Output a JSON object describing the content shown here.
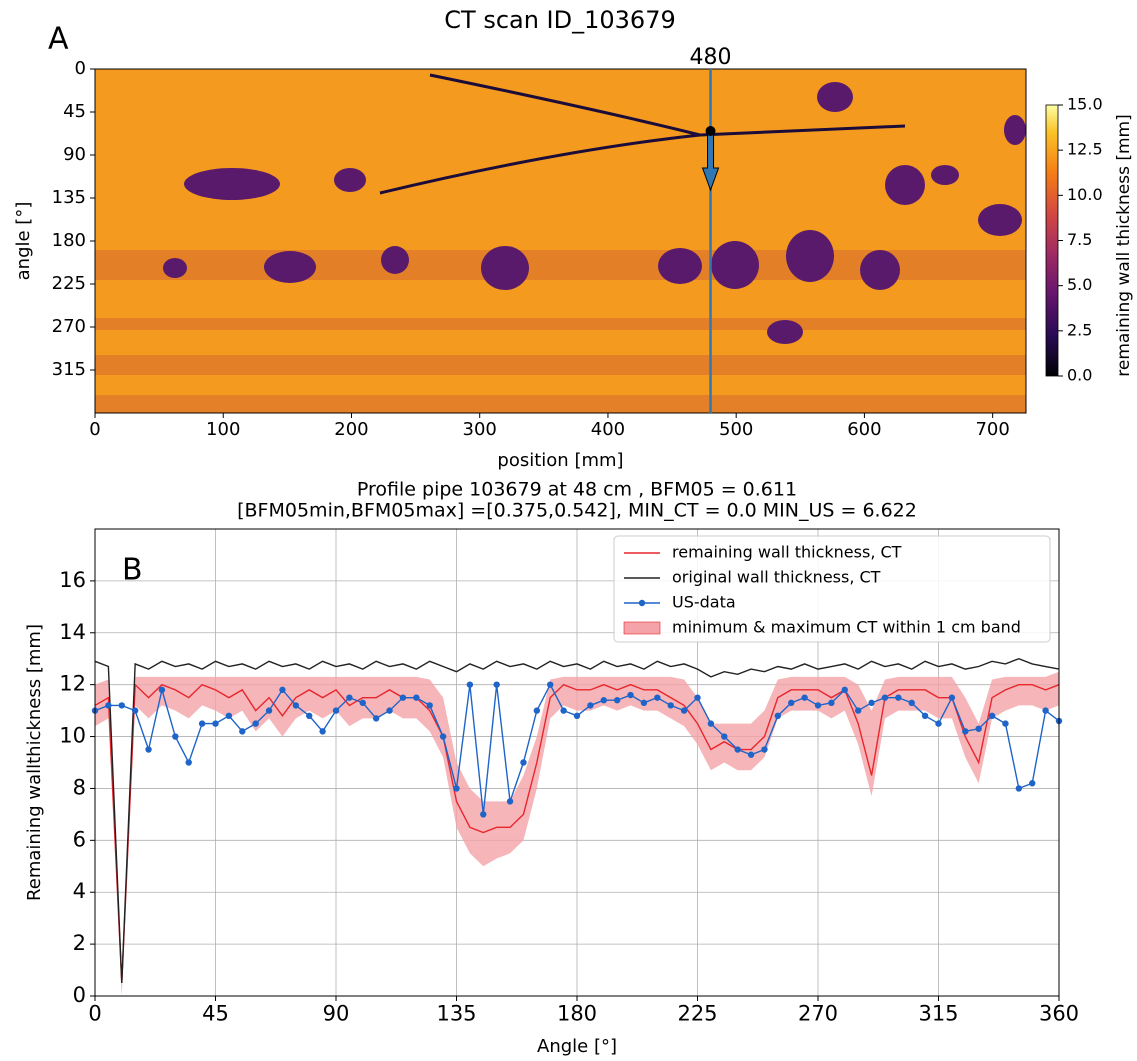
{
  "chart_data": [
    {
      "type": "heatmap",
      "panel_label": "A",
      "title": "CT scan ID_103679",
      "xlabel": "position [mm]",
      "ylabel": "angle [°]",
      "xlim": [
        0,
        726
      ],
      "ylim": [
        0,
        360
      ],
      "yinvert": true,
      "xticks": [
        0,
        100,
        200,
        300,
        400,
        500,
        600,
        700
      ],
      "yticks": [
        0,
        45,
        90,
        135,
        180,
        225,
        270,
        315
      ],
      "marker": 480,
      "colorbar_label": "remaining wall thickness [mm]",
      "clim": [
        0,
        15
      ],
      "cticks": [
        {
          "value": 0,
          "label": "0.0"
        },
        2.5,
        {
          "value": 5,
          "label": "5.0"
        },
        7.5,
        {
          "value": 10,
          "label": "10.0"
        },
        12.5,
        {
          "value": 15,
          "label": "15.0"
        }
      ]
    },
    {
      "type": "line",
      "panel_label": "B",
      "title": "Profile pipe 103679 at 48 cm , BFM05 = 0.611",
      "subtitle": "[BFM05min,BFM05max] =[0.375,0.542], MIN_CT = 0.0 MIN_US = 6.622",
      "xlabel": "Angle [°]",
      "ylabel": "Remaining wallthickness [mm]",
      "xlim": [
        0,
        360
      ],
      "ylim": [
        0,
        18
      ],
      "xticks": [
        0,
        45,
        90,
        135,
        180,
        225,
        270,
        315,
        360
      ],
      "yticks": [
        0,
        2,
        4,
        6,
        8,
        10,
        12,
        14,
        16
      ],
      "grid": true,
      "legend": "upper right",
      "x": [
        0,
        5,
        10,
        15,
        20,
        25,
        30,
        35,
        40,
        45,
        50,
        55,
        60,
        65,
        70,
        75,
        80,
        85,
        90,
        95,
        100,
        105,
        110,
        115,
        120,
        125,
        130,
        135,
        140,
        145,
        150,
        155,
        160,
        165,
        170,
        175,
        180,
        185,
        190,
        195,
        200,
        205,
        210,
        215,
        220,
        225,
        230,
        235,
        240,
        245,
        250,
        255,
        260,
        265,
        270,
        275,
        280,
        285,
        290,
        295,
        300,
        305,
        310,
        315,
        320,
        325,
        330,
        335,
        340,
        345,
        350,
        355,
        360
      ],
      "series": [
        {
          "name": "minimum & maximum CT within 1 cm band",
          "type": "band",
          "color": "#f4a3a8",
          "low": [
            10.4,
            10.7,
            0,
            11.2,
            10.7,
            11.2,
            11,
            10.7,
            11.2,
            11,
            10.7,
            11,
            10.2,
            10.7,
            10,
            10.7,
            11,
            10.7,
            11,
            10.4,
            10.7,
            10.7,
            11,
            10.7,
            10.7,
            10.2,
            9.2,
            6.5,
            5.5,
            5,
            5.3,
            5.5,
            6,
            8,
            10.7,
            11.2,
            11,
            11,
            11.2,
            11,
            11.2,
            11,
            11,
            10.7,
            10.4,
            9.7,
            8.7,
            9,
            8.7,
            8.7,
            9.2,
            10.7,
            11,
            11,
            11,
            10.7,
            11,
            9.7,
            7.7,
            10.7,
            11,
            11,
            11,
            10.7,
            10.7,
            9.2,
            8.2,
            10.7,
            11,
            11.2,
            11.2,
            11,
            11.2
          ],
          "high": [
            12,
            12.2,
            1,
            12.3,
            12.3,
            12.3,
            12.3,
            12.3,
            12.3,
            12.3,
            12.3,
            12.3,
            12.3,
            12.3,
            12.3,
            12.3,
            12.3,
            12.3,
            12.3,
            12.3,
            12.3,
            12.3,
            12.3,
            12.3,
            12.3,
            12.2,
            11.5,
            9,
            8,
            7.5,
            7.5,
            7.5,
            8.5,
            10,
            12.2,
            12.3,
            12.3,
            12.3,
            12.3,
            12.3,
            12.3,
            12.3,
            12.3,
            12.3,
            12.2,
            11.5,
            10.5,
            10.5,
            10.5,
            10.5,
            11,
            12.2,
            12.3,
            12.3,
            12.3,
            12.3,
            12.3,
            12,
            11,
            12.2,
            12.3,
            12.3,
            12.3,
            12.3,
            12.3,
            11.5,
            10.5,
            12.2,
            12.3,
            12.3,
            12.3,
            12.3,
            12.5
          ]
        },
        {
          "name": "remaining wall thickness, CT",
          "type": "line",
          "color": "#e8262c",
          "values": [
            11.2,
            11.5,
            0.5,
            12,
            11.5,
            12,
            11.8,
            11.5,
            12,
            11.8,
            11.5,
            11.8,
            11,
            11.5,
            10.8,
            11.5,
            11.8,
            11.5,
            11.8,
            11.2,
            11.5,
            11.5,
            11.8,
            11.5,
            11.5,
            11,
            10,
            7.5,
            6.5,
            6.3,
            6.5,
            6.5,
            7,
            9,
            11.5,
            12,
            11.8,
            11.8,
            12,
            11.8,
            12,
            11.8,
            11.8,
            11.5,
            11.2,
            10.5,
            9.5,
            9.8,
            9.5,
            9.5,
            10,
            11.5,
            11.8,
            11.8,
            11.8,
            11.5,
            11.8,
            10.5,
            8.5,
            11.5,
            11.8,
            11.8,
            11.8,
            11.5,
            11.5,
            10,
            9,
            11.5,
            11.8,
            12,
            12,
            11.8,
            12
          ]
        },
        {
          "name": "original wall thickness, CT",
          "type": "line",
          "color": "#222222",
          "values": [
            12.9,
            12.7,
            0.5,
            12.8,
            12.6,
            12.9,
            12.7,
            12.8,
            12.6,
            12.9,
            12.7,
            12.8,
            12.6,
            12.9,
            12.7,
            12.8,
            12.6,
            12.9,
            12.7,
            12.8,
            12.6,
            12.9,
            12.7,
            12.8,
            12.6,
            12.9,
            12.7,
            12.5,
            12.8,
            12.6,
            12.9,
            12.7,
            12.8,
            12.6,
            12.9,
            12.7,
            12.8,
            12.6,
            12.9,
            12.7,
            12.8,
            12.6,
            12.9,
            12.7,
            12.8,
            12.6,
            12.3,
            12.5,
            12.4,
            12.6,
            12.5,
            12.7,
            12.6,
            12.8,
            12.6,
            12.7,
            12.8,
            12.6,
            12.9,
            12.7,
            12.8,
            12.6,
            12.9,
            12.7,
            12.8,
            12.6,
            12.7,
            12.9,
            12.8,
            13,
            12.8,
            12.7,
            12.6
          ]
        },
        {
          "name": "US-data",
          "type": "line-markers",
          "color": "#1f64c8",
          "values": [
            11,
            11.2,
            11.2,
            11,
            9.5,
            11.8,
            10,
            9,
            10.5,
            10.5,
            10.8,
            10.2,
            10.5,
            11,
            11.8,
            11.2,
            10.8,
            10.2,
            11,
            11.5,
            11.3,
            10.7,
            11,
            11.5,
            11.5,
            11.2,
            10,
            8,
            12,
            7,
            12,
            7.5,
            9,
            11,
            12,
            11,
            10.8,
            11.2,
            11.4,
            11.4,
            11.6,
            11.3,
            11.5,
            11.2,
            11,
            11.5,
            10.5,
            10,
            9.5,
            9.3,
            9.5,
            10.8,
            11.3,
            11.5,
            11.2,
            11.3,
            11.8,
            11,
            11.3,
            11.5,
            11.5,
            11.3,
            10.8,
            10.5,
            11.5,
            10.2,
            10.3,
            10.8,
            10.5,
            8,
            8.2,
            11,
            10.6
          ]
        }
      ]
    }
  ]
}
